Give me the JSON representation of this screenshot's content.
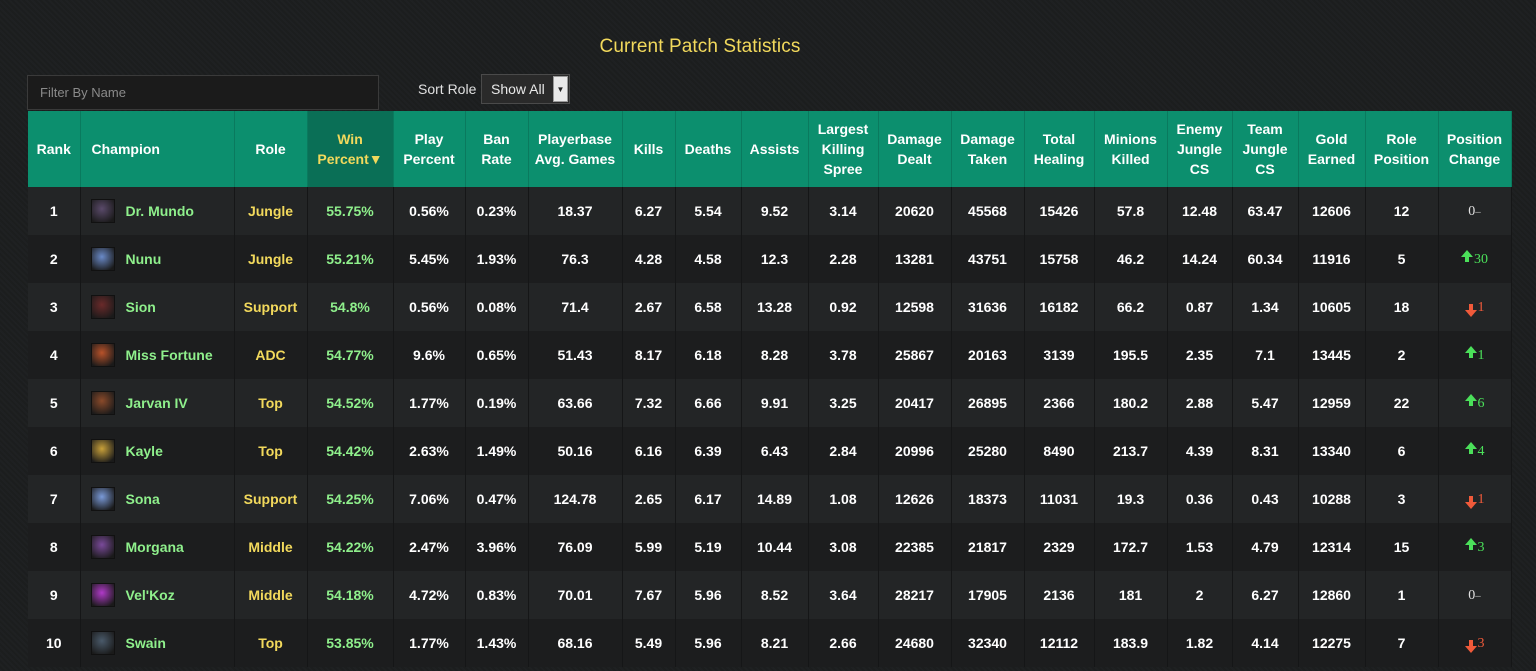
{
  "page": {
    "title": "Current Patch Statistics"
  },
  "filter": {
    "placeholder": "Filter By Name",
    "value": ""
  },
  "sort": {
    "label": "Sort Role",
    "selected": "Show All"
  },
  "colors": {
    "header_bg": "#0c8f6e",
    "active_header_bg": "#0a6f56",
    "accent_yellow": "#f2d95c",
    "accent_green": "#8ff08c",
    "up_green": "#4be05a",
    "down_red": "#f05a3a"
  },
  "table": {
    "columns": [
      {
        "key": "rank",
        "label": "Rank"
      },
      {
        "key": "champion",
        "label": "Champion"
      },
      {
        "key": "role",
        "label": "Role"
      },
      {
        "key": "win",
        "label": "Win Percent▼",
        "active": true
      },
      {
        "key": "play",
        "label": "Play Percent"
      },
      {
        "key": "ban",
        "label": "Ban Rate"
      },
      {
        "key": "avg_games",
        "label": "Playerbase Avg. Games"
      },
      {
        "key": "kills",
        "label": "Kills"
      },
      {
        "key": "deaths",
        "label": "Deaths"
      },
      {
        "key": "assists",
        "label": "Assists"
      },
      {
        "key": "spree",
        "label": "Largest Killing Spree"
      },
      {
        "key": "dmg_dealt",
        "label": "Damage Dealt"
      },
      {
        "key": "dmg_taken",
        "label": "Damage Taken"
      },
      {
        "key": "healing",
        "label": "Total Healing"
      },
      {
        "key": "minions",
        "label": "Minions Killed"
      },
      {
        "key": "enemy_jungle",
        "label": "Enemy Jungle CS"
      },
      {
        "key": "team_jungle",
        "label": "Team Jungle CS"
      },
      {
        "key": "gold",
        "label": "Gold Earned"
      },
      {
        "key": "role_pos",
        "label": "Role Position"
      },
      {
        "key": "pos_change",
        "label": "Position Change"
      }
    ],
    "rows": [
      {
        "rank": "1",
        "champion": "Dr. Mundo",
        "icon": "dr-mundo-icon",
        "icon_color": "#5a4a6a",
        "role": "Jungle",
        "win": "55.75%",
        "play": "0.56%",
        "ban": "0.23%",
        "avg_games": "18.37",
        "kills": "6.27",
        "deaths": "5.54",
        "assists": "9.52",
        "spree": "3.14",
        "dmg_dealt": "20620",
        "dmg_taken": "45568",
        "healing": "15426",
        "minions": "57.8",
        "enemy_jungle": "12.48",
        "team_jungle": "63.47",
        "gold": "12606",
        "role_pos": "12",
        "pos_dir": "none",
        "pos_change": "0",
        "pos_suffix": "–"
      },
      {
        "rank": "2",
        "champion": "Nunu",
        "icon": "nunu-icon",
        "icon_color": "#6a8ac8",
        "role": "Jungle",
        "win": "55.21%",
        "play": "5.45%",
        "ban": "1.93%",
        "avg_games": "76.3",
        "kills": "4.28",
        "deaths": "4.58",
        "assists": "12.3",
        "spree": "2.28",
        "dmg_dealt": "13281",
        "dmg_taken": "43751",
        "healing": "15758",
        "minions": "46.2",
        "enemy_jungle": "14.24",
        "team_jungle": "60.34",
        "gold": "11916",
        "role_pos": "5",
        "pos_dir": "up",
        "pos_change": "30",
        "pos_suffix": ""
      },
      {
        "rank": "3",
        "champion": "Sion",
        "icon": "sion-icon",
        "icon_color": "#6a2a2a",
        "role": "Support",
        "win": "54.8%",
        "play": "0.56%",
        "ban": "0.08%",
        "avg_games": "71.4",
        "kills": "2.67",
        "deaths": "6.58",
        "assists": "13.28",
        "spree": "0.92",
        "dmg_dealt": "12598",
        "dmg_taken": "31636",
        "healing": "16182",
        "minions": "66.2",
        "enemy_jungle": "0.87",
        "team_jungle": "1.34",
        "gold": "10605",
        "role_pos": "18",
        "pos_dir": "down",
        "pos_change": "1",
        "pos_suffix": ""
      },
      {
        "rank": "4",
        "champion": "Miss Fortune",
        "icon": "miss-fortune-icon",
        "icon_color": "#b8522a",
        "role": "ADC",
        "win": "54.77%",
        "play": "9.6%",
        "ban": "0.65%",
        "avg_games": "51.43",
        "kills": "8.17",
        "deaths": "6.18",
        "assists": "8.28",
        "spree": "3.78",
        "dmg_dealt": "25867",
        "dmg_taken": "20163",
        "healing": "3139",
        "minions": "195.5",
        "enemy_jungle": "2.35",
        "team_jungle": "7.1",
        "gold": "13445",
        "role_pos": "2",
        "pos_dir": "up",
        "pos_change": "1",
        "pos_suffix": ""
      },
      {
        "rank": "5",
        "champion": "Jarvan IV",
        "icon": "jarvan-iv-icon",
        "icon_color": "#8a4a2a",
        "role": "Top",
        "win": "54.52%",
        "play": "1.77%",
        "ban": "0.19%",
        "avg_games": "63.66",
        "kills": "7.32",
        "deaths": "6.66",
        "assists": "9.91",
        "spree": "3.25",
        "dmg_dealt": "20417",
        "dmg_taken": "26895",
        "healing": "2366",
        "minions": "180.2",
        "enemy_jungle": "2.88",
        "team_jungle": "5.47",
        "gold": "12959",
        "role_pos": "22",
        "pos_dir": "up",
        "pos_change": "6",
        "pos_suffix": ""
      },
      {
        "rank": "6",
        "champion": "Kayle",
        "icon": "kayle-icon",
        "icon_color": "#c8a03a",
        "role": "Top",
        "win": "54.42%",
        "play": "2.63%",
        "ban": "1.49%",
        "avg_games": "50.16",
        "kills": "6.16",
        "deaths": "6.39",
        "assists": "6.43",
        "spree": "2.84",
        "dmg_dealt": "20996",
        "dmg_taken": "25280",
        "healing": "8490",
        "minions": "213.7",
        "enemy_jungle": "4.39",
        "team_jungle": "8.31",
        "gold": "13340",
        "role_pos": "6",
        "pos_dir": "up",
        "pos_change": "4",
        "pos_suffix": ""
      },
      {
        "rank": "7",
        "champion": "Sona",
        "icon": "sona-icon",
        "icon_color": "#7a9ad8",
        "role": "Support",
        "win": "54.25%",
        "play": "7.06%",
        "ban": "0.47%",
        "avg_games": "124.78",
        "kills": "2.65",
        "deaths": "6.17",
        "assists": "14.89",
        "spree": "1.08",
        "dmg_dealt": "12626",
        "dmg_taken": "18373",
        "healing": "11031",
        "minions": "19.3",
        "enemy_jungle": "0.36",
        "team_jungle": "0.43",
        "gold": "10288",
        "role_pos": "3",
        "pos_dir": "down",
        "pos_change": "1",
        "pos_suffix": ""
      },
      {
        "rank": "8",
        "champion": "Morgana",
        "icon": "morgana-icon",
        "icon_color": "#7a4a9a",
        "role": "Middle",
        "win": "54.22%",
        "play": "2.47%",
        "ban": "3.96%",
        "avg_games": "76.09",
        "kills": "5.99",
        "deaths": "5.19",
        "assists": "10.44",
        "spree": "3.08",
        "dmg_dealt": "22385",
        "dmg_taken": "21817",
        "healing": "2329",
        "minions": "172.7",
        "enemy_jungle": "1.53",
        "team_jungle": "4.79",
        "gold": "12314",
        "role_pos": "15",
        "pos_dir": "up",
        "pos_change": "3",
        "pos_suffix": ""
      },
      {
        "rank": "9",
        "champion": "Vel'Koz",
        "icon": "velkoz-icon",
        "icon_color": "#b03ac8",
        "role": "Middle",
        "win": "54.18%",
        "play": "4.72%",
        "ban": "0.83%",
        "avg_games": "70.01",
        "kills": "7.67",
        "deaths": "5.96",
        "assists": "8.52",
        "spree": "3.64",
        "dmg_dealt": "28217",
        "dmg_taken": "17905",
        "healing": "2136",
        "minions": "181",
        "enemy_jungle": "2",
        "team_jungle": "6.27",
        "gold": "12860",
        "role_pos": "1",
        "pos_dir": "none",
        "pos_change": "0",
        "pos_suffix": "–"
      },
      {
        "rank": "10",
        "champion": "Swain",
        "icon": "swain-icon",
        "icon_color": "#4a5a6a",
        "role": "Top",
        "win": "53.85%",
        "play": "1.77%",
        "ban": "1.43%",
        "avg_games": "68.16",
        "kills": "5.49",
        "deaths": "5.96",
        "assists": "8.21",
        "spree": "2.66",
        "dmg_dealt": "24680",
        "dmg_taken": "32340",
        "healing": "12112",
        "minions": "183.9",
        "enemy_jungle": "1.82",
        "team_jungle": "4.14",
        "gold": "12275",
        "role_pos": "7",
        "pos_dir": "down",
        "pos_change": "3",
        "pos_suffix": ""
      }
    ]
  }
}
